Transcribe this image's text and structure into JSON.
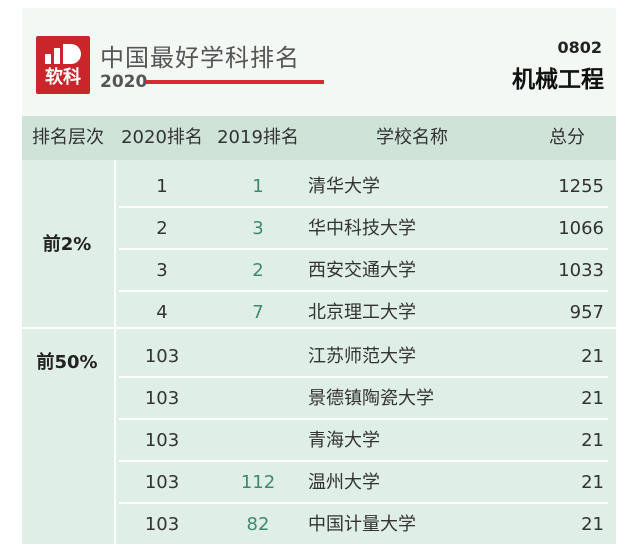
{
  "header": {
    "logo_text": "软科",
    "title": "中国最好学科排名",
    "year": "2020",
    "subject_code": "0802",
    "subject_name": "机械工程"
  },
  "columns": [
    "排名层次",
    "2020排名",
    "2019排名",
    "学校名称",
    "总分"
  ],
  "tiers": [
    "前2%",
    "前50%"
  ],
  "rows": [
    {
      "rank2020": "1",
      "rank2019": "1",
      "school": "清华大学",
      "score": "1255"
    },
    {
      "rank2020": "2",
      "rank2019": "3",
      "school": "华中科技大学",
      "score": "1066"
    },
    {
      "rank2020": "3",
      "rank2019": "2",
      "school": "西安交通大学",
      "score": "1033"
    },
    {
      "rank2020": "4",
      "rank2019": "7",
      "school": "北京理工大学",
      "score": "957"
    },
    {
      "rank2020": "103",
      "rank2019": "",
      "school": "江苏师范大学",
      "score": "21"
    },
    {
      "rank2020": "103",
      "rank2019": "",
      "school": "景德镇陶瓷大学",
      "score": "21"
    },
    {
      "rank2020": "103",
      "rank2019": "",
      "school": "青海大学",
      "score": "21"
    },
    {
      "rank2020": "103",
      "rank2019": "112",
      "school": "温州大学",
      "score": "21"
    },
    {
      "rank2020": "103",
      "rank2019": "82",
      "school": "中国计量大学",
      "score": "21"
    }
  ]
}
